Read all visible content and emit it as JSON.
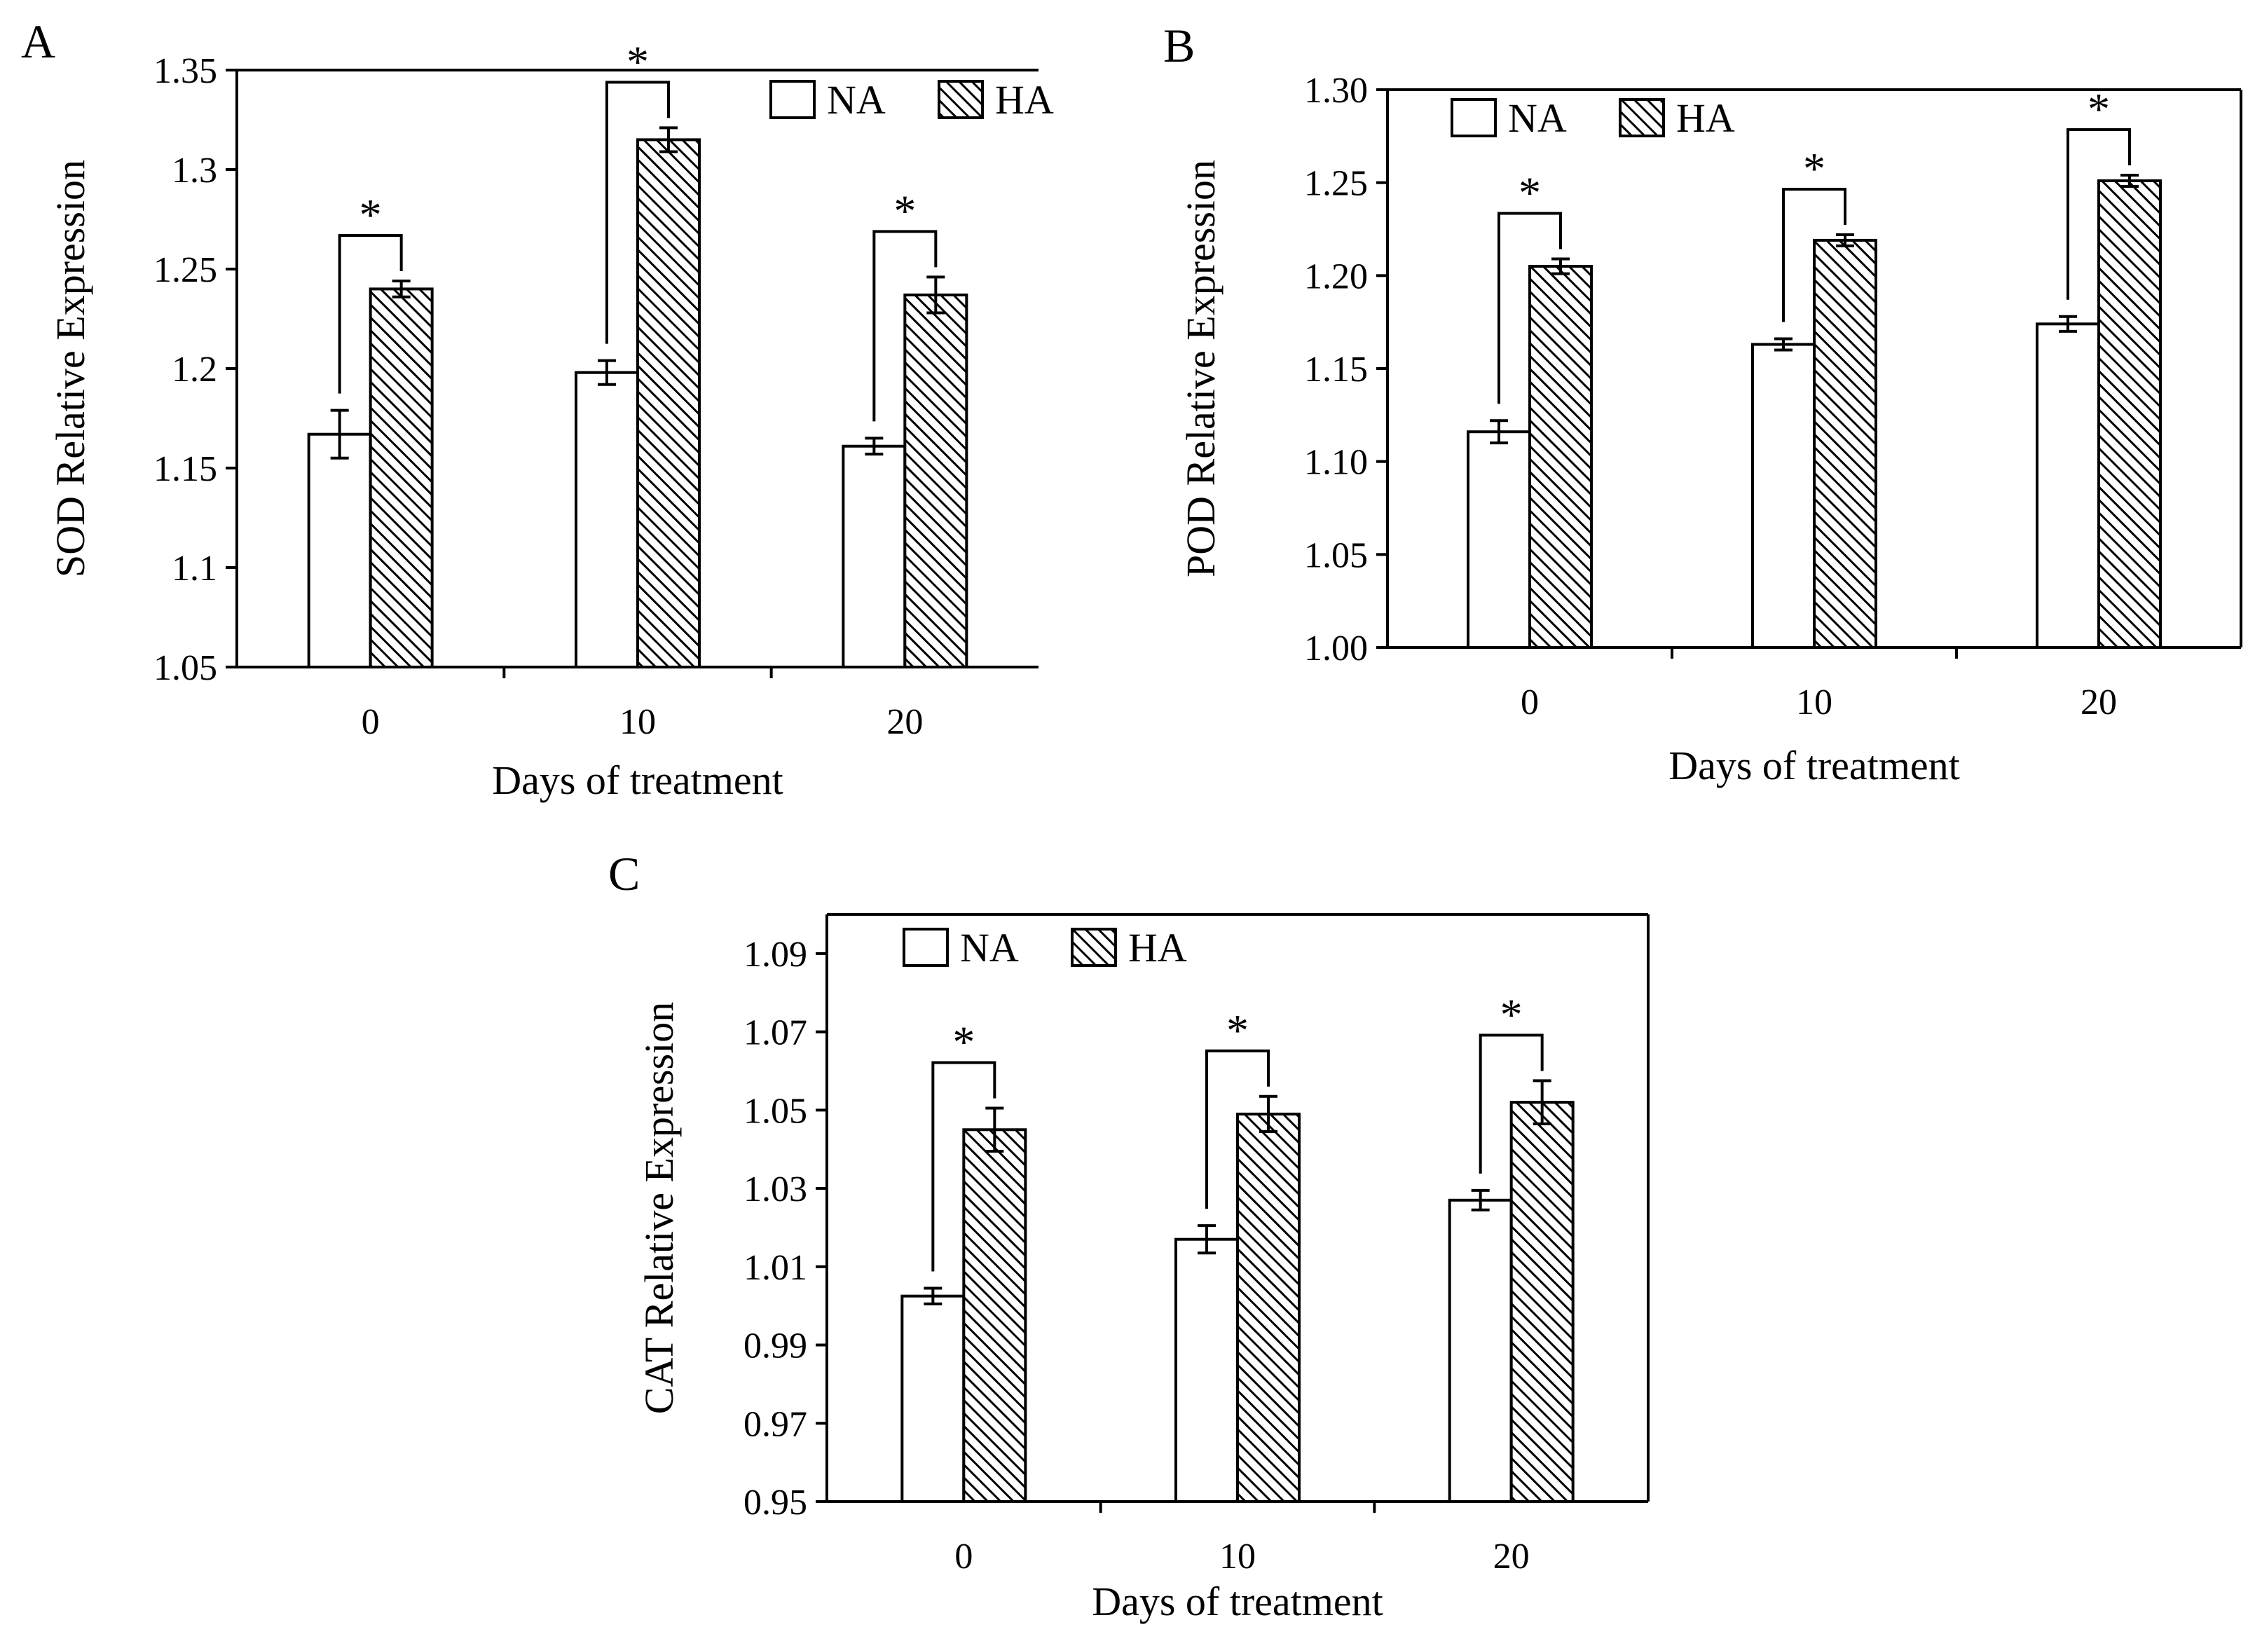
{
  "colors": {
    "na_fill": "#ffffff",
    "ha_hatch": "#000000",
    "stroke": "#000000"
  },
  "chart_data": [
    {
      "panel": "A",
      "type": "bar",
      "categories": [
        "0",
        "10",
        "20"
      ],
      "series": [
        {
          "name": "NA",
          "values": [
            1.167,
            1.198,
            1.161
          ],
          "errors": [
            0.012,
            0.006,
            0.004
          ]
        },
        {
          "name": "HA",
          "values": [
            1.24,
            1.315,
            1.237
          ],
          "errors": [
            0.004,
            0.006,
            0.009
          ]
        }
      ],
      "ylabel": "SOD Relative Expression",
      "xlabel": "Days of treatment",
      "ylim": [
        1.05,
        1.35
      ],
      "yticks": [
        "1.05",
        "1.1",
        "1.15",
        "1.2",
        "1.25",
        "1.3",
        "1.35"
      ],
      "annotations": [
        "*",
        "*",
        "*"
      ],
      "legend_position": "top-right",
      "box": "left-bottom-top"
    },
    {
      "panel": "B",
      "type": "bar",
      "categories": [
        "0",
        "10",
        "20"
      ],
      "series": [
        {
          "name": "NA",
          "values": [
            1.116,
            1.163,
            1.174
          ],
          "errors": [
            0.006,
            0.003,
            0.004
          ]
        },
        {
          "name": "HA",
          "values": [
            1.205,
            1.219,
            1.251
          ],
          "errors": [
            0.004,
            0.003,
            0.003
          ]
        }
      ],
      "ylabel": "POD  Relative Expression",
      "xlabel": "Days of treatment",
      "ylim": [
        1.0,
        1.3
      ],
      "yticks": [
        "1.00",
        "1.05",
        "1.10",
        "1.15",
        "1.20",
        "1.25",
        "1.30"
      ],
      "annotations": [
        "*",
        "*",
        "*"
      ],
      "legend_position": "top-left",
      "box": "full"
    },
    {
      "panel": "C",
      "type": "bar",
      "categories": [
        "0",
        "10",
        "20"
      ],
      "series": [
        {
          "name": "NA",
          "values": [
            1.0025,
            1.017,
            1.027
          ],
          "errors": [
            0.002,
            0.0035,
            0.0025
          ]
        },
        {
          "name": "HA",
          "values": [
            1.045,
            1.049,
            1.052
          ],
          "errors": [
            0.0055,
            0.0045,
            0.0055
          ]
        }
      ],
      "ylabel": "CAT  Relative Expression",
      "xlabel": "Days of treatment",
      "ylim": [
        0.95,
        1.1
      ],
      "yticks": [
        "0.95",
        "0.97",
        "0.99",
        "1.01",
        "1.03",
        "1.05",
        "1.07",
        "1.09"
      ],
      "annotations": [
        "*",
        "*",
        "*"
      ],
      "legend_position": "top-left",
      "box": "full"
    }
  ]
}
